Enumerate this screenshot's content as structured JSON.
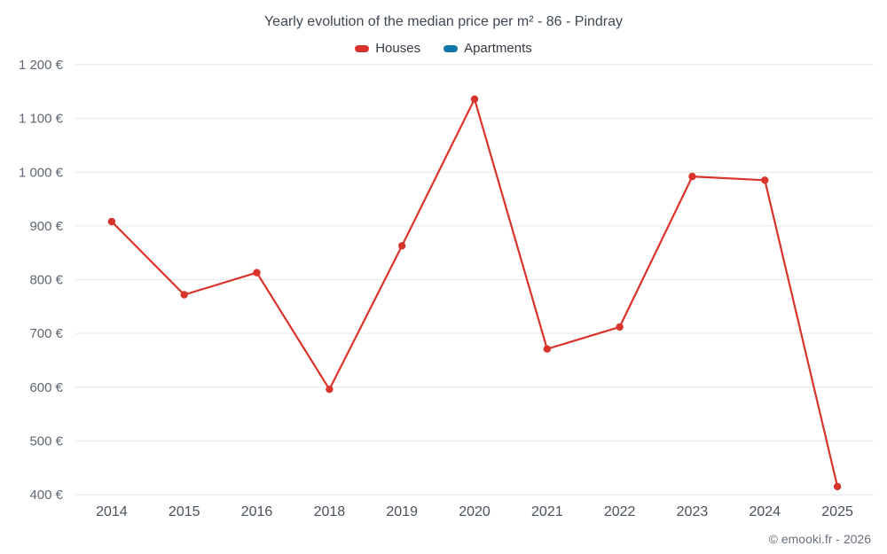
{
  "chart_data": {
    "type": "line",
    "title": "Yearly evolution of the median price per m² - 86 - Pindray",
    "categories": [
      "2014",
      "2015",
      "2016",
      "2018",
      "2019",
      "2020",
      "2021",
      "2022",
      "2023",
      "2024",
      "2025"
    ],
    "series": [
      {
        "name": "Houses",
        "color": "#d9342b",
        "values": [
          908,
          772,
          813,
          596,
          863,
          1136,
          671,
          712,
          992,
          985,
          415
        ]
      },
      {
        "name": "Apartments",
        "color": "#0e76a8",
        "values": []
      }
    ],
    "xlabel": "",
    "ylabel": "",
    "ylim": [
      400,
      1200
    ],
    "y_tick_step": 100,
    "y_tick_labels": [
      "400 €",
      "500 €",
      "600 €",
      "700 €",
      "800 €",
      "900 €",
      "1 000 €",
      "1 100 €",
      "1 200 €"
    ],
    "grid": "horizontal",
    "legend_position": "top",
    "colors": {
      "gridline": "#e6e6e6",
      "tick_text": "#5d6672",
      "title_text": "#3e4753"
    }
  },
  "footer": {
    "text": "© emooki.fr - 2026"
  }
}
